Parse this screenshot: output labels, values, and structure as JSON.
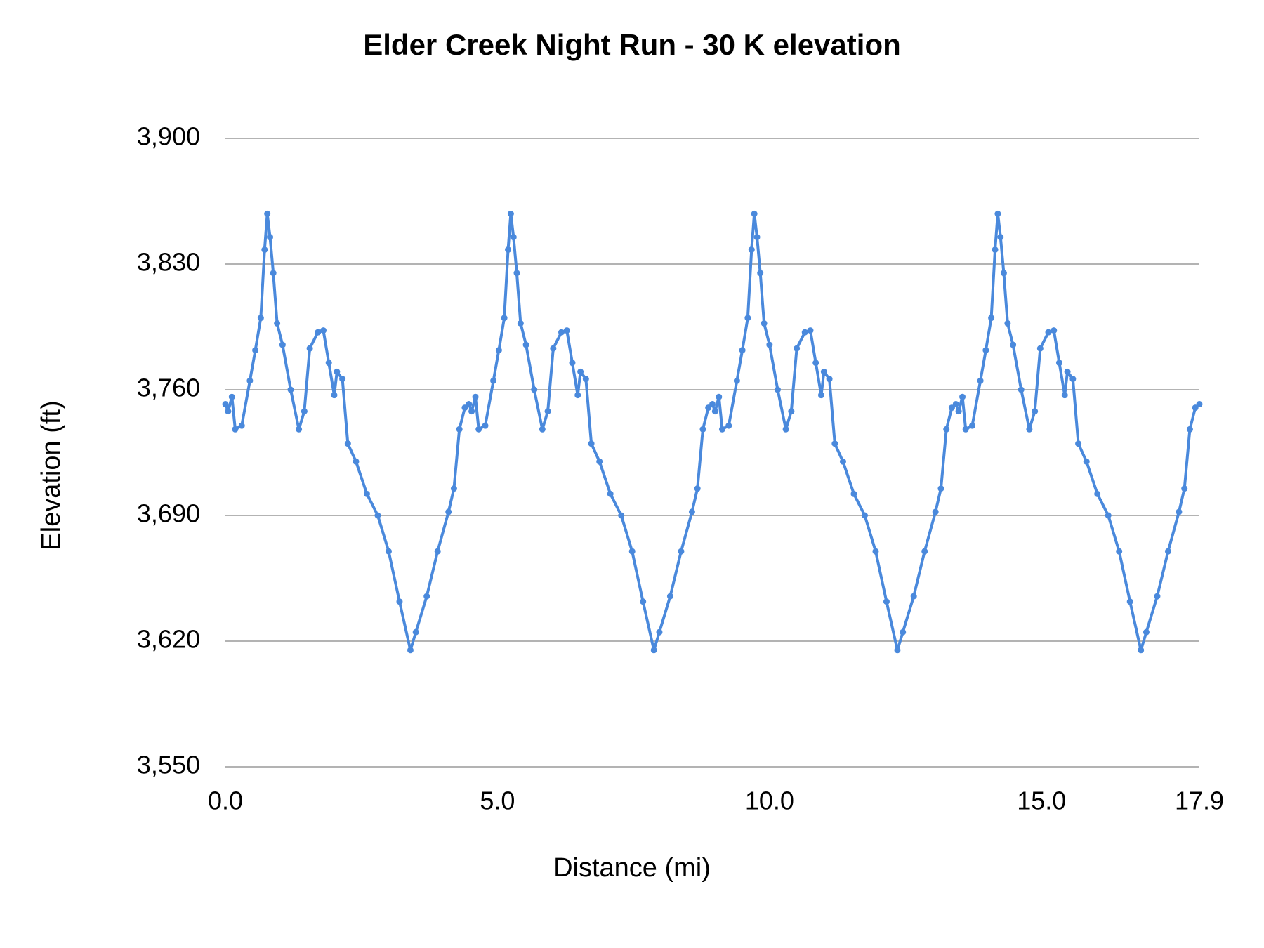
{
  "chart_data": {
    "type": "line",
    "title": "Elder Creek Night Run - 30 K elevation",
    "x_label": "Distance (mi)",
    "y_label": "Elevation (ft)",
    "xlim": [
      0,
      17.9
    ],
    "ylim": [
      3550,
      3900
    ],
    "xticks": [
      {
        "value": 0,
        "label": "0.0"
      },
      {
        "value": 5,
        "label": "5.0"
      },
      {
        "value": 10,
        "label": "10.0"
      },
      {
        "value": 15,
        "label": "15.0"
      },
      17.9
    ],
    "yticks": [
      {
        "value": 3550,
        "label": "3,550"
      },
      {
        "value": 3620,
        "label": "3,620"
      },
      {
        "value": 3690,
        "label": "3,690"
      },
      {
        "value": 3760,
        "label": "3,760"
      },
      {
        "value": 3830,
        "label": "3,830"
      },
      {
        "value": 3900,
        "label": "3,900"
      }
    ],
    "grid": true,
    "x": [
      0,
      0.05,
      0.12,
      0.18,
      0.3,
      0.45,
      0.55,
      0.65,
      0.72,
      0.77,
      0.82,
      0.88,
      0.95,
      1.05,
      1.2,
      1.35,
      1.45,
      1.55,
      1.7,
      1.8,
      1.9,
      2.0,
      2.05,
      2.15,
      2.25,
      2.4,
      2.6,
      2.8,
      3.0,
      3.2,
      3.4,
      3.5,
      3.7,
      3.9,
      4.1,
      4.2,
      4.3,
      4.4,
      4.475,
      4.525,
      4.595,
      4.655,
      4.775,
      4.925,
      5.025,
      5.125,
      5.195,
      5.245,
      5.295,
      5.355,
      5.425,
      5.525,
      5.675,
      5.825,
      5.925,
      6.025,
      6.175,
      6.275,
      6.375,
      6.475,
      6.525,
      6.625,
      6.725,
      6.875,
      7.075,
      7.275,
      7.475,
      7.675,
      7.875,
      7.975,
      8.175,
      8.375,
      8.575,
      8.675,
      8.775,
      8.875,
      8.95,
      9.0,
      9.07,
      9.13,
      9.25,
      9.4,
      9.5,
      9.6,
      9.67,
      9.72,
      9.77,
      9.83,
      9.9,
      10.0,
      10.15,
      10.3,
      10.4,
      10.5,
      10.65,
      10.75,
      10.85,
      10.95,
      11.0,
      11.1,
      11.2,
      11.35,
      11.55,
      11.75,
      11.95,
      12.15,
      12.35,
      12.45,
      12.65,
      12.85,
      13.05,
      13.15,
      13.25,
      13.35,
      13.425,
      13.475,
      13.545,
      13.605,
      13.725,
      13.875,
      13.975,
      14.075,
      14.145,
      14.195,
      14.245,
      14.305,
      14.375,
      14.475,
      14.625,
      14.775,
      14.875,
      14.975,
      15.125,
      15.225,
      15.325,
      15.425,
      15.475,
      15.575,
      15.675,
      15.825,
      16.025,
      16.225,
      16.425,
      16.625,
      16.825,
      16.925,
      17.125,
      17.325,
      17.525,
      17.625,
      17.725,
      17.825,
      17.9
    ],
    "series": [
      {
        "name": "Elevation",
        "color": "#4a89dc",
        "values": [
          3752,
          3748,
          3756,
          3738,
          3740,
          3765,
          3782,
          3800,
          3838,
          3858,
          3845,
          3825,
          3797,
          3785,
          3760,
          3738,
          3748,
          3783,
          3792,
          3793,
          3775,
          3757,
          3770,
          3766,
          3730,
          3720,
          3702,
          3690,
          3670,
          3642,
          3615,
          3625,
          3645,
          3670,
          3692,
          3705,
          3738,
          3750,
          3752,
          3748,
          3756,
          3738,
          3740,
          3765,
          3782,
          3800,
          3838,
          3858,
          3845,
          3825,
          3797,
          3785,
          3760,
          3738,
          3748,
          3783,
          3792,
          3793,
          3775,
          3757,
          3770,
          3766,
          3730,
          3720,
          3702,
          3690,
          3670,
          3642,
          3615,
          3625,
          3645,
          3670,
          3692,
          3705,
          3738,
          3750,
          3752,
          3748,
          3756,
          3738,
          3740,
          3765,
          3782,
          3800,
          3838,
          3858,
          3845,
          3825,
          3797,
          3785,
          3760,
          3738,
          3748,
          3783,
          3792,
          3793,
          3775,
          3757,
          3770,
          3766,
          3730,
          3720,
          3702,
          3690,
          3670,
          3642,
          3615,
          3625,
          3645,
          3670,
          3692,
          3705,
          3738,
          3750,
          3752,
          3748,
          3756,
          3738,
          3740,
          3765,
          3782,
          3800,
          3838,
          3858,
          3845,
          3825,
          3797,
          3785,
          3760,
          3738,
          3748,
          3783,
          3792,
          3793,
          3775,
          3757,
          3770,
          3766,
          3730,
          3720,
          3702,
          3690,
          3670,
          3642,
          3615,
          3625,
          3645,
          3670,
          3692,
          3705,
          3738,
          3750,
          3752
        ]
      }
    ]
  }
}
